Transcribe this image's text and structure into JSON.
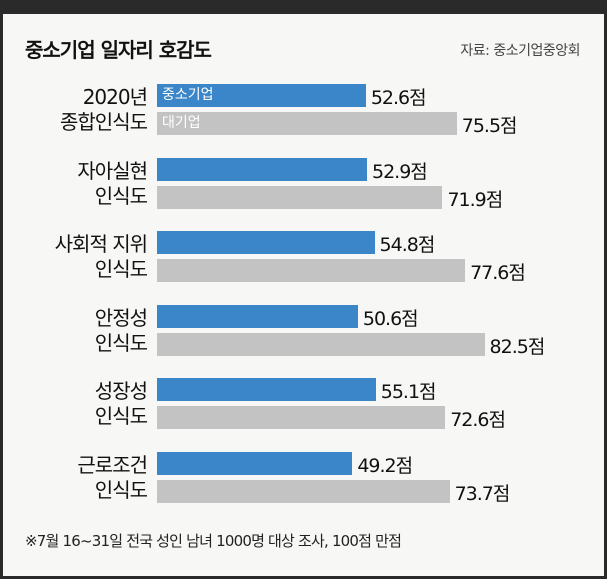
{
  "chart_data": {
    "type": "bar",
    "orientation": "horizontal",
    "title": "중소기업 일자리 호감도",
    "source": "자료: 중소기업중앙회",
    "footnote": "※7월 16~31일 전국 성인 남녀 1000명 대상 조사, 100점 만점",
    "categories": [
      "2020년\n종합인식도",
      "자아실현\n인식도",
      "사회적 지위\n인식도",
      "안정성\n인식도",
      "성장성\n인식도",
      "근로조건\n인식도"
    ],
    "series": [
      {
        "name": "중소기업",
        "color": "#3a86c8",
        "values": [
          52.6,
          52.9,
          54.8,
          50.6,
          55.1,
          49.2
        ],
        "value_labels": [
          "52.6점",
          "52.9점",
          "54.8점",
          "50.6점",
          "55.1점",
          "49.2점"
        ]
      },
      {
        "name": "대기업",
        "color": "#c3c3c3",
        "values": [
          75.5,
          71.9,
          77.6,
          82.5,
          72.6,
          73.7
        ],
        "value_labels": [
          "75.5점",
          "71.9점",
          "77.6점",
          "82.5점",
          "72.6점",
          "73.7점"
        ]
      }
    ],
    "xlim": [
      0,
      100
    ]
  }
}
